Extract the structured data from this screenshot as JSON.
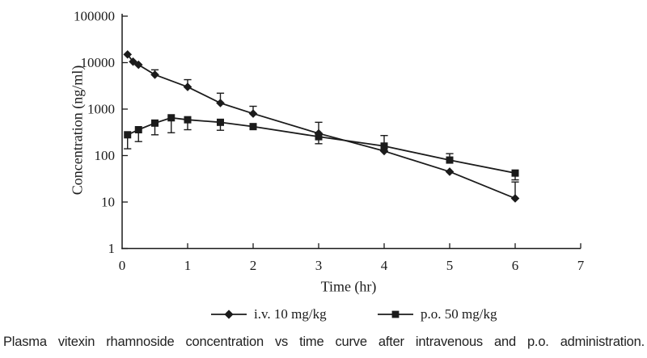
{
  "figure": {
    "caption": "Plasma vitexin rhamnoside concentration vs time curve after intravenous and p.o. administration.",
    "background_color": "#ffffff",
    "ink_color": "#1b1b1b"
  },
  "chart_data": {
    "type": "line",
    "title": "",
    "xlabel": "Time (hr)",
    "ylabel": "Concentration (ng/ml)",
    "grid": "off",
    "legend_position": "bottom",
    "x_axis": {
      "min": 0,
      "max": 7,
      "ticks": [
        0,
        1,
        2,
        3,
        4,
        5,
        6,
        7
      ],
      "tick_labels": [
        "0",
        "1",
        "2",
        "3",
        "4",
        "5",
        "6",
        "7"
      ]
    },
    "y_axis": {
      "scale": "log",
      "min": 1,
      "max": 100000,
      "ticks": [
        1,
        10,
        100,
        1000,
        10000,
        100000
      ],
      "tick_labels": [
        "1",
        "10",
        "100",
        "1000",
        "10000",
        "100000"
      ]
    },
    "legend": [
      {
        "label": "i.v. 10 mg/kg",
        "marker": "diamond"
      },
      {
        "label": "p.o. 50 mg/kg",
        "marker": "square"
      }
    ],
    "series": [
      {
        "key": "iv",
        "name": "i.v. 10 mg/kg",
        "marker": "diamond",
        "points": [
          {
            "t": 0.083,
            "c": 15000
          },
          {
            "t": 0.167,
            "c": 10500
          },
          {
            "t": 0.25,
            "c": 9000
          },
          {
            "t": 0.5,
            "c": 5500,
            "hi": 7000
          },
          {
            "t": 1,
            "c": 3000,
            "hi": 4300
          },
          {
            "t": 1.5,
            "c": 1350,
            "hi": 2200
          },
          {
            "t": 2,
            "c": 800,
            "hi": 1150
          },
          {
            "t": 3,
            "c": 300,
            "hi": 520,
            "lo": 180
          },
          {
            "t": 4,
            "c": 125
          },
          {
            "t": 5,
            "c": 45
          },
          {
            "t": 6,
            "c": 12,
            "hi": 27
          }
        ]
      },
      {
        "key": "po",
        "name": "p.o. 50 mg/kg",
        "marker": "square",
        "points": [
          {
            "t": 0.083,
            "c": 280,
            "lo": 140
          },
          {
            "t": 0.25,
            "c": 360,
            "lo": 200
          },
          {
            "t": 0.5,
            "c": 500,
            "lo": 280
          },
          {
            "t": 0.75,
            "c": 650,
            "lo": 310
          },
          {
            "t": 1,
            "c": 590,
            "lo": 360
          },
          {
            "t": 1.5,
            "c": 520,
            "lo": 350
          },
          {
            "t": 2,
            "c": 420
          },
          {
            "t": 3,
            "c": 255
          },
          {
            "t": 4,
            "c": 160,
            "hi": 270
          },
          {
            "t": 5,
            "c": 80,
            "hi": 110
          },
          {
            "t": 6,
            "c": 42,
            "lo": 30
          }
        ]
      }
    ]
  }
}
